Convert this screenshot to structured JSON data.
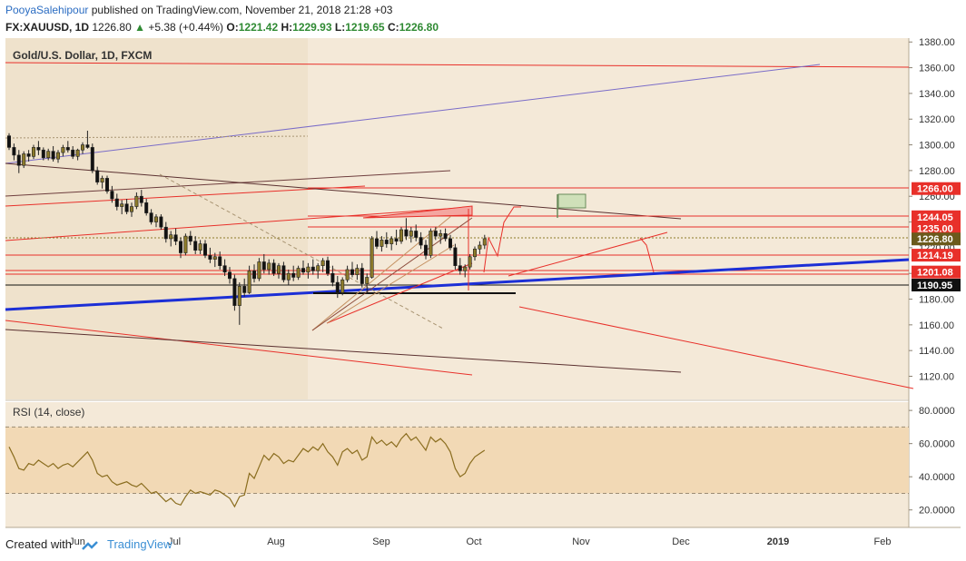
{
  "header": {
    "author": "PooyaSalehipour",
    "published": "published on TradingView.com, November 21, 2018 21:28 +03",
    "symbol": "FX:XAUUSD, 1D",
    "last": "1226.80",
    "change_arrow": "▲",
    "change": "+5.38 (+0.44%)",
    "o_label": "O:",
    "o_value": "1221.42",
    "h_label": "H:",
    "h_value": "1229.93",
    "l_label": "L:",
    "l_value": "1219.65",
    "c_label": "C:",
    "c_value": "1226.80"
  },
  "footer": {
    "created_with": "Created with",
    "brand": "TradingView"
  },
  "colors": {
    "background": "#f4e9d8",
    "highlight_band": "#efe2cc",
    "bull": "#8c7a2a",
    "bear": "#111111",
    "red_line": "#e8302a",
    "blue_line": "#1c2fd6",
    "purple_line": "#7a6cc8",
    "brown_line": "#5a3030",
    "rsi_line": "#8a6d1f",
    "rsi_band": "#f2d9b5",
    "price_tag_red": "#e8302a",
    "price_tag_last": "#6b5a1c",
    "price_tag_black": "#111111"
  },
  "chart_data": [
    {
      "type": "candlestick",
      "title": "Gold/U.S. Dollar, 1D, FXCM",
      "x_tick_labels": [
        "Jun",
        "Jul",
        "Aug",
        "Sep",
        "Oct",
        "Nov",
        "Dec",
        "2019",
        "Feb"
      ],
      "y_ticks": [
        1120,
        1140,
        1160,
        1180,
        1200,
        1220,
        1240,
        1260,
        1280,
        1300,
        1320,
        1340,
        1360,
        1380
      ],
      "y_tick_labels": [
        "1120.00",
        "1140.00",
        "1160.00",
        "1180.00",
        "1200.00",
        "1220.00",
        "1240.00",
        "1260.00",
        "1280.00",
        "1300.00",
        "1320.00",
        "1340.00",
        "1360.00",
        "1380.00"
      ],
      "ylim": [
        1102,
        1383
      ],
      "price_tags": [
        {
          "label": "1266.00",
          "value": 1266.0,
          "style": "red"
        },
        {
          "label": "1244.05",
          "value": 1244.05,
          "style": "red"
        },
        {
          "label": "1235.00",
          "value": 1235.0,
          "style": "red"
        },
        {
          "label": "1226.80",
          "value": 1226.8,
          "style": "last"
        },
        {
          "label": "1214.19",
          "value": 1214.19,
          "style": "red"
        },
        {
          "label": "1201.08",
          "value": 1201.08,
          "style": "red"
        },
        {
          "label": "1190.95",
          "value": 1190.95,
          "style": "black"
        }
      ],
      "ohlc": [
        [
          1307,
          1309,
          1296,
          1298
        ],
        [
          1298,
          1301,
          1288,
          1292
        ],
        [
          1292,
          1296,
          1278,
          1284
        ],
        [
          1284,
          1295,
          1282,
          1293
        ],
        [
          1293,
          1296,
          1287,
          1291
        ],
        [
          1291,
          1300,
          1289,
          1298
        ],
        [
          1298,
          1303,
          1292,
          1296
        ],
        [
          1296,
          1298,
          1288,
          1290
        ],
        [
          1290,
          1297,
          1288,
          1295
        ],
        [
          1295,
          1299,
          1287,
          1289
        ],
        [
          1289,
          1296,
          1286,
          1294
        ],
        [
          1294,
          1300,
          1291,
          1298
        ],
        [
          1298,
          1303,
          1294,
          1296
        ],
        [
          1296,
          1299,
          1289,
          1291
        ],
        [
          1291,
          1297,
          1288,
          1296
        ],
        [
          1296,
          1302,
          1293,
          1300
        ],
        [
          1300,
          1311,
          1297,
          1298
        ],
        [
          1298,
          1301,
          1278,
          1280
        ],
        [
          1280,
          1283,
          1269,
          1271
        ],
        [
          1271,
          1276,
          1266,
          1274
        ],
        [
          1274,
          1276,
          1262,
          1264
        ],
        [
          1264,
          1268,
          1255,
          1258
        ],
        [
          1258,
          1262,
          1249,
          1252
        ],
        [
          1252,
          1257,
          1246,
          1254
        ],
        [
          1254,
          1258,
          1246,
          1248
        ],
        [
          1248,
          1255,
          1244,
          1252
        ],
        [
          1252,
          1263,
          1250,
          1260
        ],
        [
          1260,
          1265,
          1252,
          1255
        ],
        [
          1255,
          1258,
          1245,
          1247
        ],
        [
          1247,
          1250,
          1238,
          1240
        ],
        [
          1240,
          1246,
          1236,
          1244
        ],
        [
          1244,
          1246,
          1234,
          1236
        ],
        [
          1236,
          1240,
          1224,
          1227
        ],
        [
          1227,
          1233,
          1221,
          1230
        ],
        [
          1230,
          1235,
          1222,
          1225
        ],
        [
          1225,
          1228,
          1212,
          1216
        ],
        [
          1216,
          1231,
          1214,
          1229
        ],
        [
          1229,
          1233,
          1222,
          1225
        ],
        [
          1225,
          1229,
          1215,
          1218
        ],
        [
          1218,
          1226,
          1215,
          1223
        ],
        [
          1223,
          1226,
          1212,
          1214
        ],
        [
          1214,
          1220,
          1208,
          1211
        ],
        [
          1211,
          1216,
          1205,
          1213
        ],
        [
          1213,
          1217,
          1203,
          1206
        ],
        [
          1206,
          1211,
          1198,
          1201
        ],
        [
          1201,
          1205,
          1192,
          1196
        ],
        [
          1196,
          1199,
          1171,
          1175
        ],
        [
          1175,
          1193,
          1160,
          1190
        ],
        [
          1190,
          1196,
          1182,
          1185
        ],
        [
          1185,
          1206,
          1184,
          1202
        ],
        [
          1202,
          1207,
          1193,
          1196
        ],
        [
          1196,
          1212,
          1194,
          1209
        ],
        [
          1209,
          1215,
          1200,
          1203
        ],
        [
          1203,
          1211,
          1199,
          1208
        ],
        [
          1208,
          1211,
          1198,
          1200
        ],
        [
          1200,
          1208,
          1196,
          1206
        ],
        [
          1206,
          1209,
          1193,
          1195
        ],
        [
          1195,
          1203,
          1191,
          1200
        ],
        [
          1200,
          1206,
          1194,
          1197
        ],
        [
          1197,
          1206,
          1195,
          1204
        ],
        [
          1204,
          1210,
          1199,
          1201
        ],
        [
          1201,
          1208,
          1196,
          1205
        ],
        [
          1205,
          1211,
          1199,
          1202
        ],
        [
          1202,
          1208,
          1196,
          1206
        ],
        [
          1206,
          1212,
          1201,
          1210
        ],
        [
          1210,
          1213,
          1198,
          1200
        ],
        [
          1200,
          1206,
          1190,
          1193
        ],
        [
          1193,
          1198,
          1181,
          1185
        ],
        [
          1185,
          1197,
          1183,
          1195
        ],
        [
          1195,
          1206,
          1193,
          1203
        ],
        [
          1203,
          1209,
          1197,
          1199
        ],
        [
          1199,
          1207,
          1195,
          1204
        ],
        [
          1204,
          1208,
          1189,
          1192
        ],
        [
          1192,
          1200,
          1185,
          1197
        ],
        [
          1197,
          1229,
          1196,
          1227
        ],
        [
          1227,
          1233,
          1219,
          1221
        ],
        [
          1221,
          1229,
          1217,
          1226
        ],
        [
          1226,
          1232,
          1220,
          1223
        ],
        [
          1223,
          1229,
          1218,
          1227
        ],
        [
          1227,
          1234,
          1222,
          1225
        ],
        [
          1225,
          1236,
          1223,
          1234
        ],
        [
          1234,
          1243,
          1226,
          1229
        ],
        [
          1229,
          1236,
          1224,
          1233
        ],
        [
          1233,
          1238,
          1225,
          1228
        ],
        [
          1228,
          1232,
          1219,
          1222
        ],
        [
          1222,
          1226,
          1211,
          1214
        ],
        [
          1214,
          1235,
          1212,
          1233
        ],
        [
          1233,
          1236,
          1226,
          1229
        ],
        [
          1229,
          1234,
          1223,
          1231
        ],
        [
          1231,
          1235,
          1225,
          1227
        ],
        [
          1227,
          1230,
          1218,
          1220
        ],
        [
          1220,
          1223,
          1203,
          1206
        ],
        [
          1206,
          1212,
          1199,
          1202
        ],
        [
          1202,
          1207,
          1197,
          1205
        ],
        [
          1205,
          1215,
          1203,
          1213
        ],
        [
          1213,
          1221,
          1210,
          1219
        ],
        [
          1219,
          1225,
          1215,
          1222
        ],
        [
          1222,
          1230,
          1219,
          1227
        ]
      ],
      "rsi": {
        "title": "RSI (14, close)",
        "y_ticks": [
          20,
          40,
          60,
          80
        ],
        "y_tick_labels": [
          "20.0000",
          "40.0000",
          "60.0000",
          "80.0000"
        ],
        "ylim": [
          10,
          85
        ],
        "band": [
          30,
          70
        ],
        "values": [
          58,
          52,
          45,
          44,
          48,
          47,
          50,
          48,
          46,
          48,
          45,
          47,
          48,
          46,
          49,
          52,
          55,
          50,
          42,
          40,
          41,
          37,
          35,
          36,
          37,
          35,
          34,
          36,
          33,
          30,
          31,
          28,
          25,
          27,
          24,
          23,
          28,
          32,
          30,
          31,
          30,
          29,
          32,
          31,
          29,
          27,
          22,
          28,
          29,
          42,
          39,
          46,
          53,
          50,
          54,
          52,
          48,
          50,
          49,
          53,
          57,
          55,
          58,
          56,
          60,
          55,
          52,
          47,
          55,
          57,
          54,
          56,
          50,
          52,
          64,
          60,
          62,
          59,
          61,
          58,
          63,
          66,
          62,
          64,
          60,
          56,
          64,
          61,
          63,
          60,
          55,
          45,
          40,
          42,
          48,
          52,
          54,
          56
        ]
      }
    }
  ]
}
